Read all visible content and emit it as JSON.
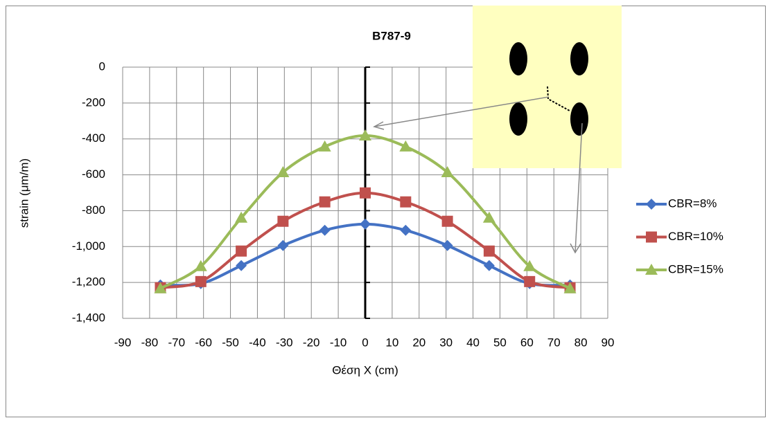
{
  "chart_data": {
    "type": "line",
    "title": "B787-9",
    "x_label": "Θέση X (cm)",
    "y_label": "strain (μm/m)",
    "x": [
      -76,
      -61,
      -46,
      -30.5,
      -15,
      0,
      15,
      30.5,
      46,
      61,
      76
    ],
    "series": [
      {
        "name": "CBR=8%",
        "color": "#4472c4",
        "marker": "diamond",
        "values": [
          -1214,
          -1206,
          -1106,
          -994,
          -909,
          -875,
          -909,
          -994,
          -1106,
          -1206,
          -1214
        ]
      },
      {
        "name": "CBR=10%",
        "color": "#c0504d",
        "marker": "square",
        "values": [
          -1229,
          -1195,
          -1025,
          -859,
          -751,
          -701,
          -751,
          -859,
          -1025,
          -1195,
          -1229
        ]
      },
      {
        "name": "CBR=15%",
        "color": "#9bbb59",
        "marker": "triangle",
        "values": [
          -1233,
          -1110,
          -840,
          -586,
          -443,
          -382,
          -443,
          -586,
          -840,
          -1110,
          -1233
        ]
      }
    ],
    "xlim": [
      -90,
      90
    ],
    "xticks": [
      -90,
      -80,
      -70,
      -60,
      -50,
      -40,
      -30,
      -20,
      -10,
      0,
      10,
      20,
      30,
      40,
      50,
      60,
      70,
      80,
      90
    ],
    "ylim": [
      -1400,
      0
    ],
    "yticks": [
      {
        "value": -1400,
        "label": "-1,400"
      },
      {
        "value": -1200,
        "label": "-1,200"
      },
      {
        "value": -1000,
        "label": "-1,000"
      },
      -800,
      -600,
      -400,
      -200,
      0
    ],
    "grid": true,
    "legend": "right"
  }
}
